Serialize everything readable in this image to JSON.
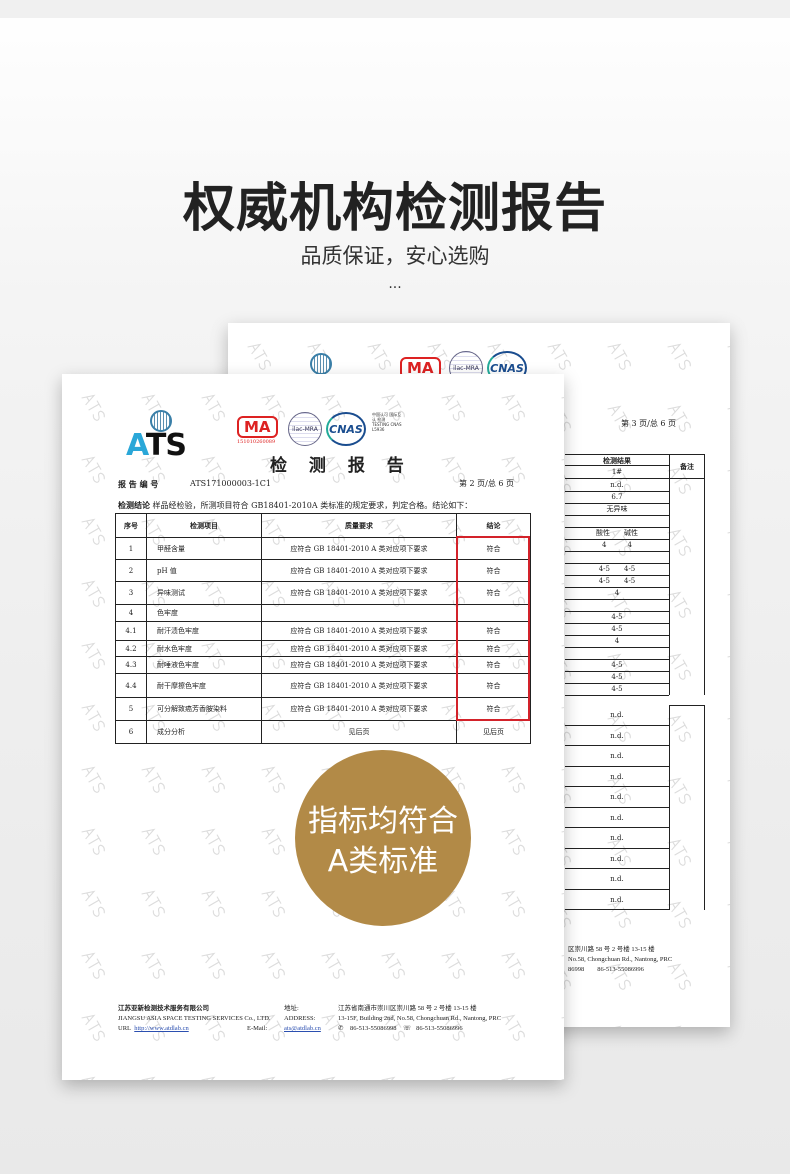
{
  "header": {
    "title": "权威机构检测报告",
    "subtitle": "品质保证，安心选购",
    "ellipsis": "..."
  },
  "watermark": "ATS",
  "logos": {
    "ats": "ATS",
    "cma": "MA",
    "cma_code": "151010260089",
    "ilac": "ilac-MRA",
    "cnas": "CNAS",
    "cnas_note": "中国认可 国际互认 检测 TESTING CNAS L5936"
  },
  "front": {
    "report_title": "检 测 报 告",
    "report_no_label": "报 告 编 号",
    "report_no": "ATS171000003-1C1",
    "page_info": "第 2 页/总 6 页",
    "conclusion_label": "检测结论",
    "conclusion_text": "样品经检验，所测项目符合 GB18401-2010A 类标准的规定要求，判定合格。结论如下：",
    "columns": [
      "序号",
      "检测项目",
      "质量要求",
      "结论"
    ],
    "rows": [
      [
        "1",
        "甲醛含量",
        "应符合 GB 18401-2010 A 类对应项下要求",
        "符合"
      ],
      [
        "2",
        "pH 值",
        "应符合 GB 18401-2010 A 类对应项下要求",
        "符合"
      ],
      [
        "3",
        "异味测试",
        "应符合 GB 18401-2010 A 类对应项下要求",
        "符合"
      ],
      [
        "4",
        "色牢度",
        "",
        ""
      ],
      [
        "4.1",
        "耐汗渍色牢度",
        "应符合 GB 18401-2010 A 类对应项下要求",
        "符合"
      ],
      [
        "4.2",
        "耐水色牢度",
        "应符合 GB 18401-2010 A 类对应项下要求",
        "符合"
      ],
      [
        "4.3",
        "耐唾液色牢度",
        "应符合 GB 18401-2010 A 类对应项下要求",
        "符合"
      ],
      [
        "4.4",
        "耐干摩擦色牢度",
        "应符合 GB 18401-2010 A 类对应项下要求",
        "符合"
      ],
      [
        "5",
        "可分解致癌芳香胺染料",
        "应符合 GB 18401-2010 A 类对应项下要求",
        "符合"
      ],
      [
        "6",
        "成分分析",
        "见后页",
        "见后页"
      ]
    ],
    "footer": {
      "company_cn": "江苏亚新检测技术服务有限公司",
      "company_en": "JIANGSU ASIA SPACE TESTING SERVICES Co., LTD.",
      "url_label": "URL",
      "url": "http://www.atdlab.cn",
      "address_label_cn": "地址:",
      "address_label_en": "ADDRESS:",
      "address_cn": "江苏省南通市崇川区崇川路 58 号 2 号楼 13-15 楼",
      "address_en": "13-15F, Building 2nd, No.58, Chongchuan Rd., Nantong, PRC",
      "email_label": "E-Mail:",
      "email": "ats@atdlab.cn",
      "phone": "86-513-55086998",
      "fax": "86-513-55086996"
    }
  },
  "back": {
    "page_info": "第 3 页/总 6 页",
    "result_header": "检测结果",
    "remark_header": "备注",
    "sample": "1#",
    "rows": [
      "n.d.",
      "6.7",
      "无异味",
      "",
      "酸性　　碱性",
      "4　　　4",
      "",
      "4-5　　4-5",
      "4-5　　4-5",
      "4",
      "",
      "4-5",
      "4-5",
      "4",
      "",
      "4-5",
      "4-5",
      "4-5"
    ],
    "nd_rows": [
      "n.d.",
      "n.d.",
      "n.d.",
      "n.d.",
      "n.d.",
      "n.d.",
      "n.d.",
      "n.d.",
      "n.d.",
      "n.d."
    ],
    "footer_lines": [
      "区崇川路 58 号 2 号楼 13-15 楼",
      "No.58, Chongchuan Rd., Nantong, PRC",
      "86998　　86-513-55086996"
    ]
  },
  "badge": {
    "line1": "指标均符合",
    "line2": "A类标准"
  },
  "colors": {
    "badge": "#b28a47",
    "highlight": "#d3222a"
  }
}
